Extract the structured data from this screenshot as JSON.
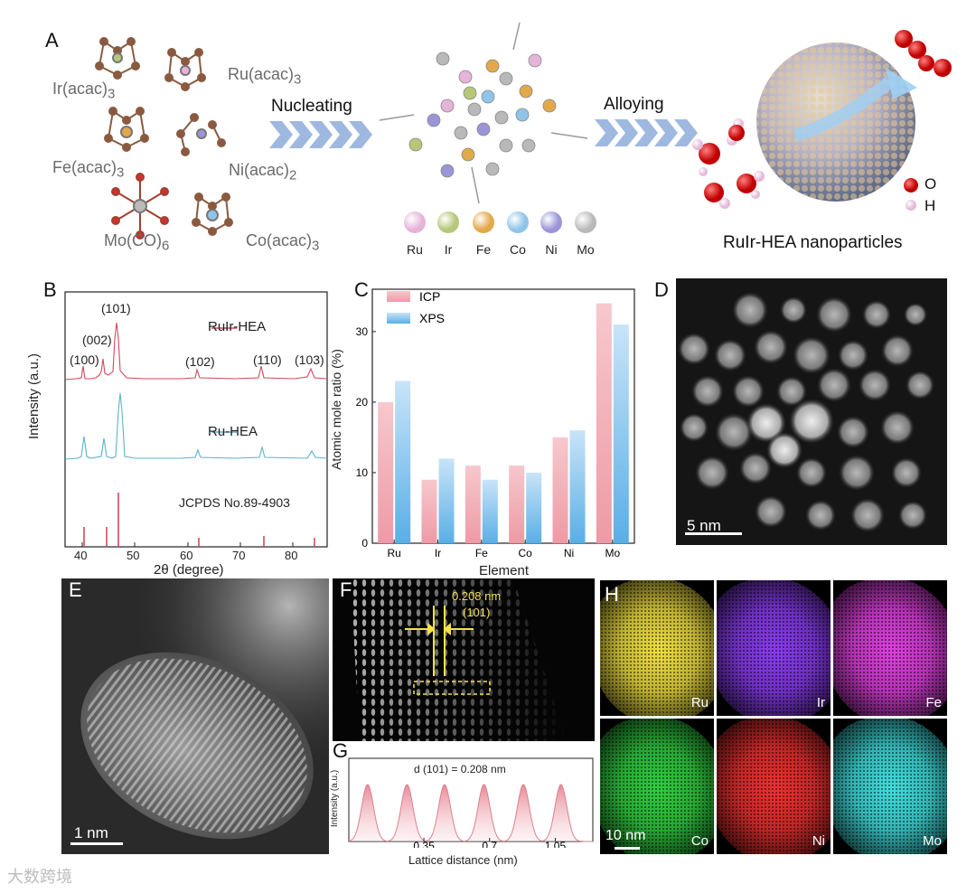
{
  "panel_a": {
    "label": "A",
    "molecules": [
      {
        "name": "Ir(acac)",
        "sub": "3"
      },
      {
        "name": "Ru(acac)",
        "sub": "3"
      },
      {
        "name": "Fe(acac)",
        "sub": "3"
      },
      {
        "name": "Ni(acac)",
        "sub": "2"
      },
      {
        "name": "Mo(CO)",
        "sub": "6"
      },
      {
        "name": "Co(acac)",
        "sub": "3"
      }
    ],
    "step1": "Nucleating",
    "step2": "Alloying",
    "elements": [
      "Ru",
      "Ir",
      "Fe",
      "Co",
      "Ni",
      "Mo"
    ],
    "element_colors": [
      "#e6b3d9",
      "#b7c77a",
      "#e2a94a",
      "#8fc4ea",
      "#9b95d8",
      "#b9b9b9"
    ],
    "product": "RuIr-HEA nanoparticles",
    "legend_o": "O",
    "legend_h": "H"
  },
  "panel_b": {
    "label": "B",
    "series1": "RuIr-HEA",
    "series2": "Ru-HEA",
    "reference": "JCPDS No.89-4903",
    "peaks": [
      "(100)",
      "(002)",
      "(101)",
      "(102)",
      "(110)",
      "(103)"
    ],
    "xlabel": "2θ (degree)",
    "ylabel": "Intensity (a.u.)",
    "xticks": [
      "40",
      "50",
      "60",
      "70",
      "80"
    ]
  },
  "panel_c": {
    "label": "C",
    "legend": [
      "ICP",
      "XPS"
    ]
  },
  "chart_data": [
    {
      "type": "bar",
      "title": "",
      "categories": [
        "Ru",
        "Ir",
        "Fe",
        "Co",
        "Ni",
        "Mo"
      ],
      "series": [
        {
          "name": "ICP",
          "values": [
            20,
            9,
            11,
            11,
            15,
            34
          ]
        },
        {
          "name": "XPS",
          "values": [
            23,
            12,
            9,
            10,
            16,
            31
          ]
        }
      ],
      "xlabel": "Element",
      "ylabel": "Atomic mole ratio (%)",
      "ylim": [
        0,
        36
      ],
      "yticks": [
        "0",
        "10",
        "20",
        "30"
      ],
      "colors": [
        "#f2b0b8",
        "#8cc6ee"
      ]
    },
    {
      "type": "line",
      "title": "d (101) = 0.208 nm",
      "xlabel": "Lattice distance (nm)",
      "ylabel": "Intensity (a.u.)",
      "xticks": [
        "0.35",
        "0.7",
        "1.05"
      ],
      "peak_positions": [
        0.05,
        0.26,
        0.46,
        0.67,
        0.88,
        1.08
      ],
      "xlim": [
        -0.05,
        1.25
      ]
    }
  ],
  "panel_d": {
    "label": "D",
    "scale": "5 nm"
  },
  "panel_e": {
    "label": "E",
    "scale": "1 nm"
  },
  "panel_f": {
    "label": "F",
    "spacing": "0.208 nm",
    "plane": "(101)"
  },
  "panel_g": {
    "label": "G"
  },
  "panel_h": {
    "label": "H",
    "maps": [
      {
        "name": "Ru",
        "color": "#f0e040"
      },
      {
        "name": "Ir",
        "color": "#8a3cf0"
      },
      {
        "name": "Fe",
        "color": "#e040e0"
      },
      {
        "name": "Co",
        "color": "#30d040"
      },
      {
        "name": "Ni",
        "color": "#f03030"
      },
      {
        "name": "Mo",
        "color": "#40e0e0"
      }
    ],
    "scale": "10 nm"
  },
  "watermark": "大数跨境"
}
